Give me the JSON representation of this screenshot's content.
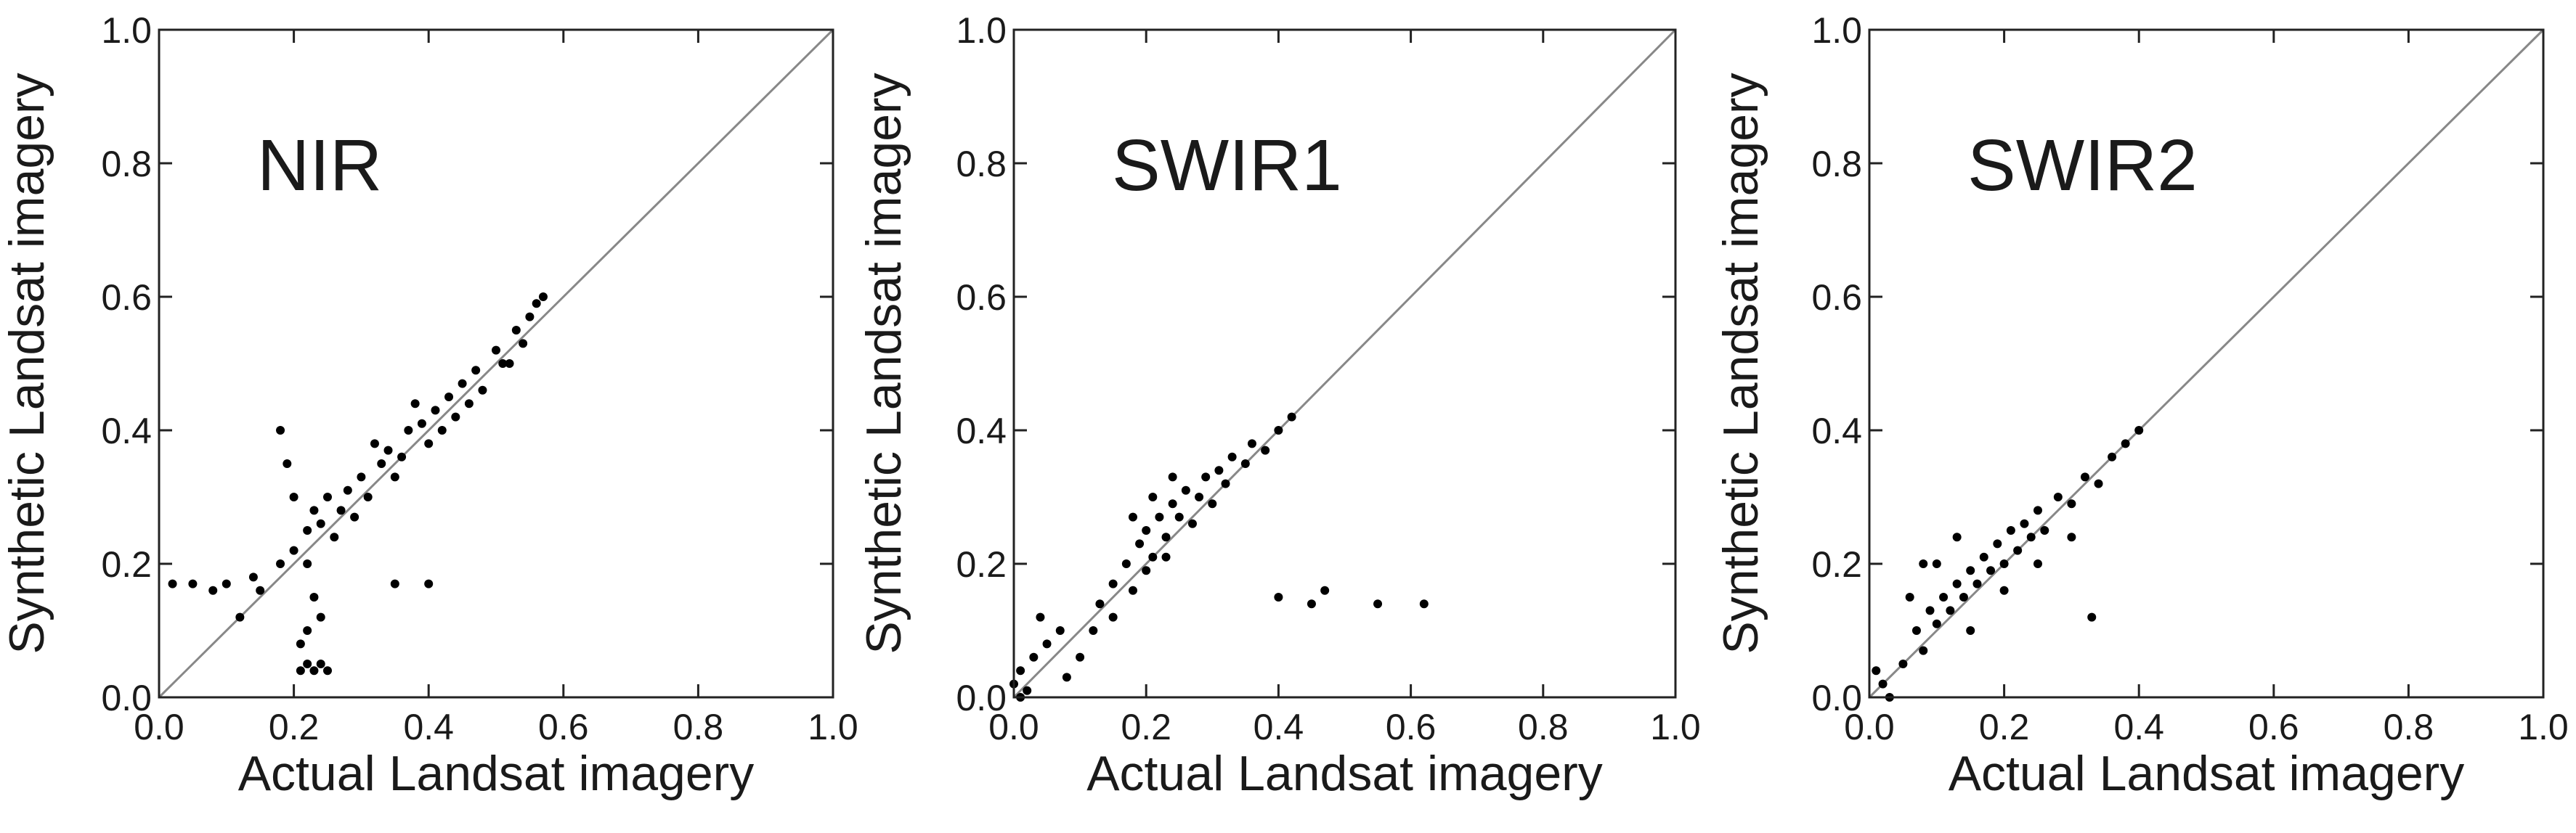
{
  "chart_data": [
    {
      "type": "scatter",
      "annotation": "NIR",
      "x_label": "Actual Landsat imagery",
      "y_label": "Synthetic Landsat imagery",
      "xlim": [
        0,
        1
      ],
      "ylim": [
        0,
        1
      ],
      "xticks": [
        {
          "value": 0,
          "label": "0.0"
        },
        {
          "value": 0.2,
          "label": "0.2"
        },
        {
          "value": 0.4,
          "label": "0.4"
        },
        {
          "value": 0.6,
          "label": "0.6"
        },
        {
          "value": 0.8,
          "label": "0.8"
        },
        {
          "value": 1,
          "label": "1.0"
        }
      ],
      "yticks": [
        {
          "value": 0,
          "label": "0.0"
        },
        {
          "value": 0.2,
          "label": "0.2"
        },
        {
          "value": 0.4,
          "label": "0.4"
        },
        {
          "value": 0.6,
          "label": "0.6"
        },
        {
          "value": 0.8,
          "label": "0.8"
        },
        {
          "value": 1,
          "label": "1.0"
        }
      ],
      "series": [
        {
          "color": "#000000",
          "x": [
            0.12,
            0.15,
            0.18,
            0.2,
            0.22,
            0.24,
            0.25,
            0.27,
            0.28,
            0.3,
            0.31,
            0.33,
            0.34,
            0.36,
            0.37,
            0.39,
            0.4,
            0.41,
            0.43,
            0.44,
            0.45,
            0.47,
            0.48,
            0.5,
            0.51,
            0.53,
            0.54,
            0.55,
            0.56,
            0.57,
            0.26,
            0.29,
            0.35,
            0.42,
            0.46,
            0.52,
            0.23,
            0.32,
            0.38,
            0.2,
            0.21,
            0.22,
            0.23,
            0.24,
            0.25,
            0.22,
            0.23,
            0.22,
            0.24,
            0.21,
            0.02,
            0.05,
            0.08,
            0.1,
            0.14,
            0.35,
            0.4,
            0.18,
            0.19
          ],
          "y": [
            0.12,
            0.16,
            0.2,
            0.22,
            0.25,
            0.26,
            0.3,
            0.28,
            0.31,
            0.33,
            0.3,
            0.35,
            0.37,
            0.36,
            0.4,
            0.41,
            0.38,
            0.43,
            0.45,
            0.42,
            0.47,
            0.49,
            0.46,
            0.52,
            0.5,
            0.55,
            0.53,
            0.57,
            0.59,
            0.6,
            0.24,
            0.27,
            0.33,
            0.4,
            0.44,
            0.5,
            0.28,
            0.38,
            0.44,
            0.3,
            0.04,
            0.05,
            0.04,
            0.05,
            0.04,
            0.1,
            0.15,
            0.2,
            0.12,
            0.08,
            0.17,
            0.17,
            0.16,
            0.17,
            0.18,
            0.17,
            0.17,
            0.4,
            0.35
          ]
        }
      ]
    },
    {
      "type": "scatter",
      "annotation": "SWIR1",
      "x_label": "Actual Landsat imagery",
      "y_label": "Synthetic Landsat imagery",
      "xlim": [
        0,
        1
      ],
      "ylim": [
        0,
        1
      ],
      "xticks": [
        {
          "value": 0,
          "label": "0.0"
        },
        {
          "value": 0.2,
          "label": "0.2"
        },
        {
          "value": 0.4,
          "label": "0.4"
        },
        {
          "value": 0.6,
          "label": "0.6"
        },
        {
          "value": 0.8,
          "label": "0.8"
        },
        {
          "value": 1,
          "label": "1.0"
        }
      ],
      "yticks": [
        {
          "value": 0,
          "label": "0.0"
        },
        {
          "value": 0.2,
          "label": "0.2"
        },
        {
          "value": 0.4,
          "label": "0.4"
        },
        {
          "value": 0.6,
          "label": "0.6"
        },
        {
          "value": 0.8,
          "label": "0.8"
        },
        {
          "value": 1,
          "label": "1.0"
        }
      ],
      "series": [
        {
          "color": "#000000",
          "x": [
            0.12,
            0.13,
            0.15,
            0.15,
            0.17,
            0.18,
            0.19,
            0.2,
            0.21,
            0.22,
            0.23,
            0.24,
            0.25,
            0.26,
            0.27,
            0.28,
            0.29,
            0.3,
            0.31,
            0.32,
            0.33,
            0.35,
            0.36,
            0.38,
            0.4,
            0.42,
            0.18,
            0.21,
            0.24,
            0.2,
            0.23,
            0.0,
            0.01,
            0.02,
            0.01,
            0.03,
            0.05,
            0.07,
            0.08,
            0.1,
            0.04,
            0.4,
            0.47,
            0.55,
            0.62,
            0.45
          ],
          "y": [
            0.1,
            0.14,
            0.12,
            0.17,
            0.2,
            0.16,
            0.23,
            0.25,
            0.21,
            0.27,
            0.24,
            0.29,
            0.27,
            0.31,
            0.26,
            0.3,
            0.33,
            0.29,
            0.34,
            0.32,
            0.36,
            0.35,
            0.38,
            0.37,
            0.4,
            0.42,
            0.27,
            0.3,
            0.33,
            0.19,
            0.21,
            0.02,
            0.04,
            0.01,
            0.0,
            0.06,
            0.08,
            0.1,
            0.03,
            0.06,
            0.12,
            0.15,
            0.16,
            0.14,
            0.14,
            0.14
          ]
        }
      ]
    },
    {
      "type": "scatter",
      "annotation": "SWIR2",
      "x_label": "Actual Landsat imagery",
      "y_label": "Synthetic Landsat imagery",
      "xlim": [
        0,
        1
      ],
      "ylim": [
        0,
        1
      ],
      "xticks": [
        {
          "value": 0,
          "label": "0.0"
        },
        {
          "value": 0.2,
          "label": "0.2"
        },
        {
          "value": 0.4,
          "label": "0.4"
        },
        {
          "value": 0.6,
          "label": "0.6"
        },
        {
          "value": 0.8,
          "label": "0.8"
        },
        {
          "value": 1,
          "label": "1.0"
        }
      ],
      "yticks": [
        {
          "value": 0,
          "label": "0.0"
        },
        {
          "value": 0.2,
          "label": "0.2"
        },
        {
          "value": 0.4,
          "label": "0.4"
        },
        {
          "value": 0.6,
          "label": "0.6"
        },
        {
          "value": 0.8,
          "label": "0.8"
        },
        {
          "value": 1,
          "label": "1.0"
        }
      ],
      "series": [
        {
          "color": "#000000",
          "x": [
            0.05,
            0.07,
            0.08,
            0.09,
            0.1,
            0.11,
            0.12,
            0.13,
            0.14,
            0.15,
            0.16,
            0.17,
            0.18,
            0.19,
            0.2,
            0.21,
            0.22,
            0.23,
            0.24,
            0.25,
            0.26,
            0.28,
            0.3,
            0.32,
            0.34,
            0.36,
            0.38,
            0.4,
            0.06,
            0.1,
            0.13,
            0.15,
            0.2,
            0.25,
            0.3,
            0.33,
            0.02,
            0.03,
            0.01,
            0.08
          ],
          "y": [
            0.05,
            0.1,
            0.07,
            0.13,
            0.11,
            0.15,
            0.13,
            0.17,
            0.15,
            0.19,
            0.17,
            0.21,
            0.19,
            0.23,
            0.2,
            0.25,
            0.22,
            0.26,
            0.24,
            0.28,
            0.25,
            0.3,
            0.29,
            0.33,
            0.32,
            0.36,
            0.38,
            0.4,
            0.15,
            0.2,
            0.24,
            0.1,
            0.16,
            0.2,
            0.24,
            0.12,
            0.02,
            0.0,
            0.04,
            0.2
          ]
        }
      ]
    }
  ]
}
